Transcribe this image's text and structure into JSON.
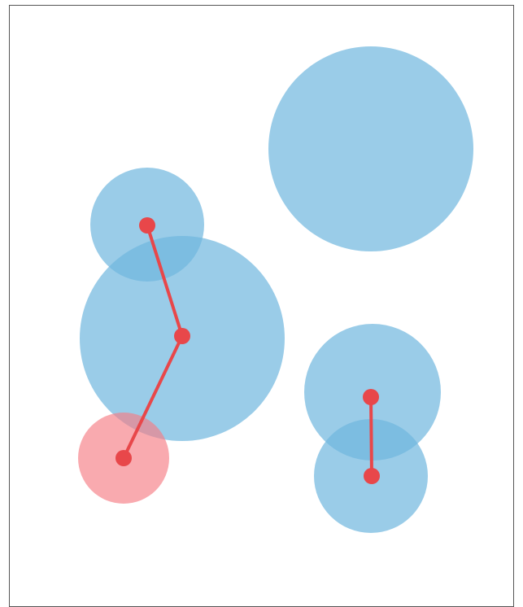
{
  "title": "",
  "colors": {
    "bubble": "#6fb6de",
    "bubble_highlight": "#f67d84",
    "edge": "#e8474a",
    "node": "#e8474a",
    "frame": "#555555"
  },
  "bubbles": [
    {
      "id": "bubble-large-top-right",
      "highlight": false
    },
    {
      "id": "bubble-upper-left",
      "highlight": false
    },
    {
      "id": "bubble-large-center-left",
      "highlight": false
    },
    {
      "id": "bubble-lower-left-highlight",
      "highlight": true
    },
    {
      "id": "bubble-right-upper",
      "highlight": false
    },
    {
      "id": "bubble-right-lower",
      "highlight": false
    }
  ],
  "nodes": [
    {
      "id": "node-a"
    },
    {
      "id": "node-b"
    },
    {
      "id": "node-c"
    },
    {
      "id": "node-d"
    },
    {
      "id": "node-e"
    }
  ],
  "edges": [
    {
      "from": "node-a",
      "to": "node-b"
    },
    {
      "from": "node-b",
      "to": "node-c"
    },
    {
      "from": "node-d",
      "to": "node-e"
    }
  ]
}
